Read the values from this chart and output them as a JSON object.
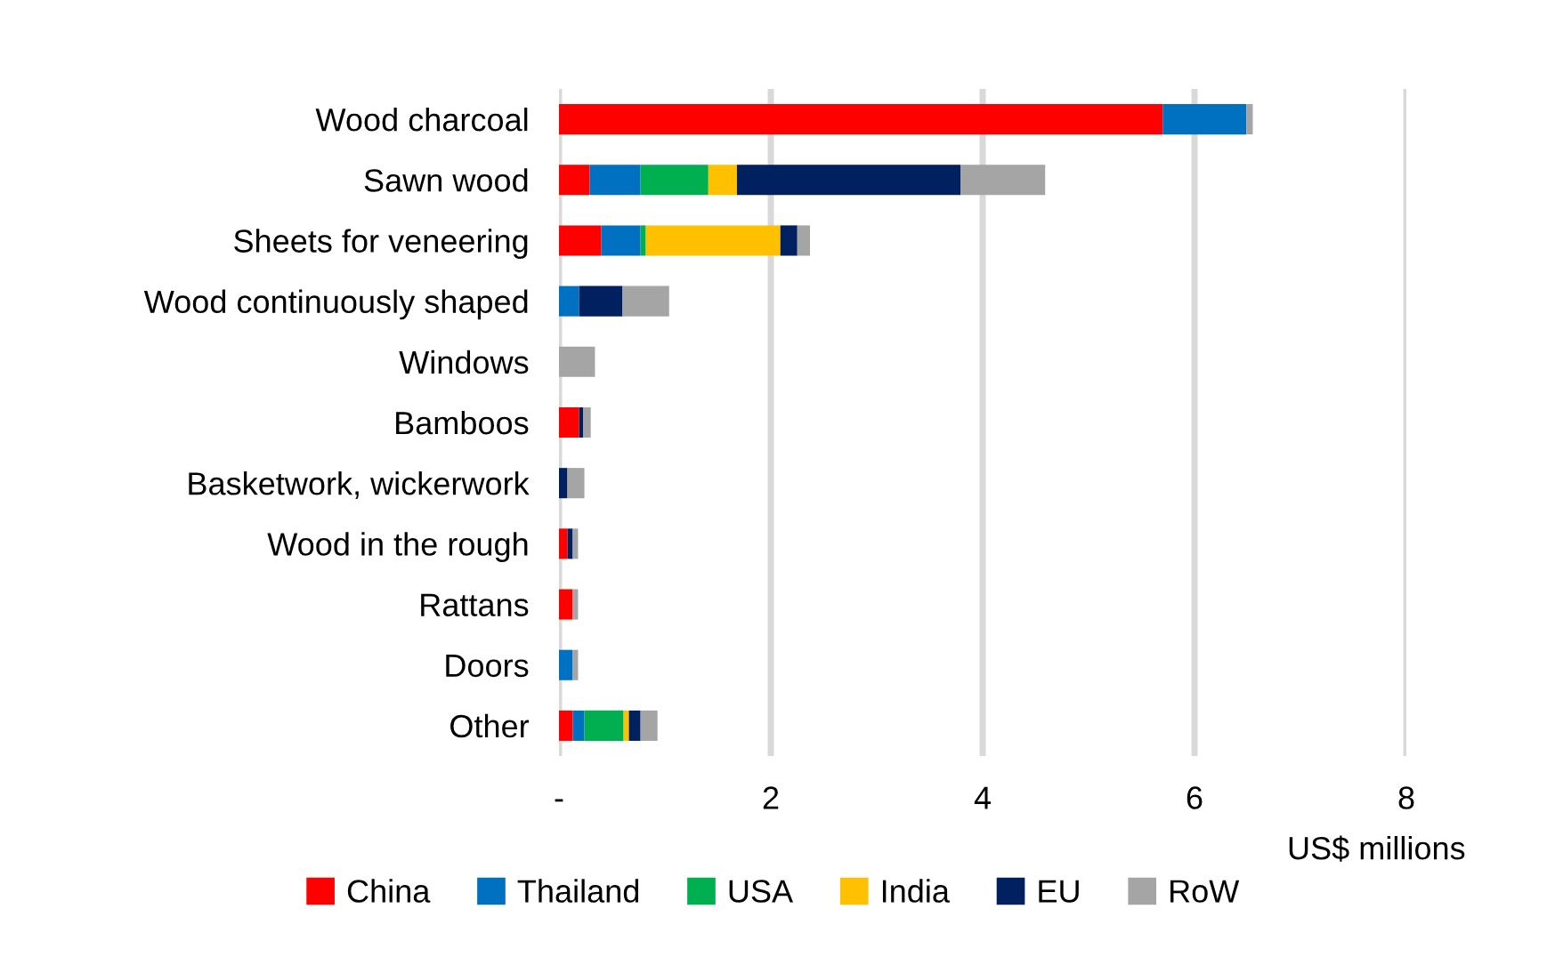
{
  "chart_data": {
    "type": "bar",
    "orientation": "horizontal",
    "stacked": true,
    "categories": [
      "Wood charcoal",
      "Sawn wood",
      "Sheets for veneering",
      "Wood continuously shaped",
      "Windows",
      "Bamboos",
      "Basketwork, wickerwork",
      "Wood in the rough",
      "Rattans",
      "Doors",
      "Other"
    ],
    "series": [
      {
        "name": "China",
        "color": "#ff0000",
        "values": [
          5.7,
          0.29,
          0.4,
          0,
          0,
          0.19,
          0,
          0.08,
          0.13,
          0,
          0.13
        ]
      },
      {
        "name": "Thailand",
        "color": "#0070c0",
        "values": [
          0.79,
          0.48,
          0.37,
          0.19,
          0,
          0,
          0,
          0,
          0,
          0.13,
          0.11
        ]
      },
      {
        "name": "USA",
        "color": "#00b050",
        "values": [
          0,
          0.64,
          0.05,
          0,
          0,
          0,
          0,
          0,
          0,
          0,
          0.37
        ]
      },
      {
        "name": "India",
        "color": "#ffc000",
        "values": [
          0,
          0.27,
          1.27,
          0,
          0,
          0,
          0,
          0,
          0,
          0,
          0.05
        ]
      },
      {
        "name": "EU",
        "color": "#002060",
        "values": [
          0,
          2.11,
          0.16,
          0.41,
          0,
          0.04,
          0.08,
          0.05,
          0,
          0,
          0.11
        ]
      },
      {
        "name": "RoW",
        "color": "#a5a5a5",
        "values": [
          0.06,
          0.8,
          0.12,
          0.44,
          0.34,
          0.07,
          0.16,
          0.05,
          0.05,
          0.05,
          0.16
        ]
      }
    ],
    "xlim": [
      0,
      8
    ],
    "xticks": [
      {
        "value": 0,
        "label": "-"
      },
      2,
      4,
      6,
      8
    ],
    "xlabel": "US$ millions",
    "grid": "x",
    "legend": "bottom"
  }
}
